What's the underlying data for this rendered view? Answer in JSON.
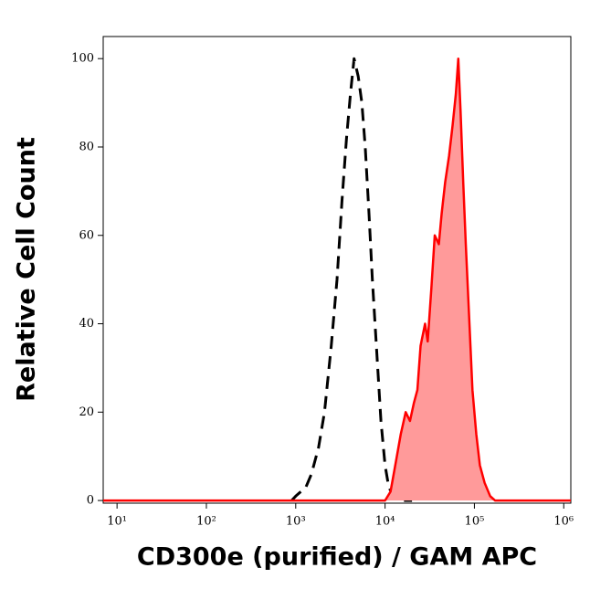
{
  "chart_data": {
    "type": "histogram-overlay",
    "xlabel": "CD300e (purified) / GAM APC",
    "ylabel": "Relative Cell Count",
    "xscale": "log",
    "xlim": [
      7,
      1200000
    ],
    "ylim": [
      -0.6,
      105
    ],
    "xticks": [
      {
        "value": 10,
        "label": "10¹"
      },
      {
        "value": 100,
        "label": "10²"
      },
      {
        "value": 1000,
        "label": "10³"
      },
      {
        "value": 10000,
        "label": "10⁴"
      },
      {
        "value": 100000,
        "label": "10⁵"
      },
      {
        "value": 1000000,
        "label": "10⁶"
      }
    ],
    "yticks": [
      0,
      20,
      40,
      60,
      80,
      100
    ],
    "series": [
      {
        "color": "#000000",
        "dashed": true,
        "filled": false,
        "x": [
          900,
          1000,
          1300,
          1500,
          1800,
          2100,
          2500,
          2900,
          3300,
          3700,
          4100,
          4500,
          5000,
          5500,
          6000,
          6600,
          7200,
          8000,
          9000,
          10000,
          11000,
          12500,
          15000,
          20000
        ],
        "values": [
          0,
          1,
          3,
          6,
          12,
          20,
          35,
          50,
          68,
          82,
          92,
          100,
          96,
          90,
          80,
          65,
          50,
          35,
          18,
          8,
          3,
          1,
          0,
          0
        ]
      },
      {
        "color": "#ff0000",
        "fill": "#ff9a9a",
        "dashed": false,
        "filled": true,
        "x": [
          7,
          10000,
          11500,
          13000,
          15000,
          17000,
          19000,
          21000,
          23000,
          25000,
          28000,
          30000,
          33000,
          36000,
          40000,
          43000,
          47000,
          52000,
          57000,
          62000,
          66000,
          70000,
          75000,
          80000,
          88000,
          95000,
          105000,
          115000,
          130000,
          150000,
          170000,
          1200000
        ],
        "values": [
          0,
          0,
          2,
          8,
          15,
          20,
          18,
          22,
          25,
          35,
          40,
          36,
          48,
          60,
          58,
          65,
          72,
          78,
          85,
          92,
          100,
          88,
          72,
          58,
          40,
          25,
          15,
          8,
          4,
          1,
          0,
          0
        ]
      }
    ]
  }
}
